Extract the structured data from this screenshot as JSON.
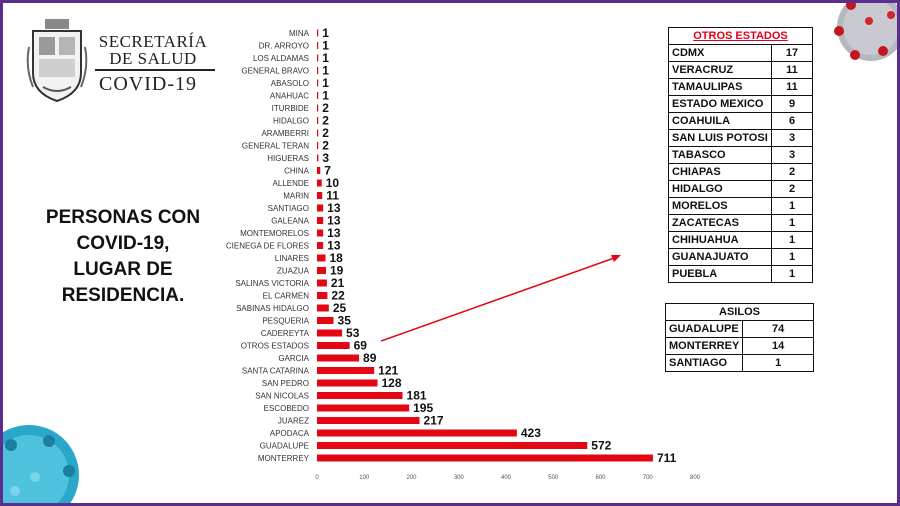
{
  "header": {
    "org_line1": "SECRETARÍA",
    "org_line2": "DE SALUD",
    "program": "COVID-19"
  },
  "caption": {
    "line1": "PERSONAS CON",
    "line2": "COVID-19,",
    "line3": "LUGAR DE",
    "line4": "RESIDENCIA."
  },
  "colors": {
    "bar": "#e30613",
    "frame": "#5b2d8e",
    "otros_title": "#e0001b"
  },
  "chart_data": {
    "type": "bar",
    "orientation": "horizontal",
    "title": "",
    "xlabel": "",
    "ylabel": "",
    "xlim": [
      0,
      800
    ],
    "x_ticks": [
      "0",
      "100",
      "200",
      "300",
      "400",
      "500",
      "600",
      "700",
      "800"
    ],
    "grid": false,
    "categories": [
      "MINA",
      "DR. ARROYO",
      "LOS ALDAMAS",
      "GENERAL BRAVO",
      "ABASOLO",
      "ANAHUAC",
      "ITURBIDE",
      "HIDALGO",
      "ARAMBERRI",
      "GENERAL TERAN",
      "HIGUERAS",
      "CHINA",
      "ALLENDE",
      "MARIN",
      "SANTIAGO",
      "GALEANA",
      "MONTEMORELOS",
      "CIENEGA DE FLORES",
      "LINARES",
      "ZUAZUA",
      "SALINAS VICTORIA",
      "EL CARMEN",
      "SABINAS HIDALGO",
      "PESQUERIA",
      "CADEREYTA",
      "OTROS ESTADOS",
      "GARCIA",
      "SANTA CATARINA",
      "SAN PEDRO",
      "SAN NICOLAS",
      "ESCOBEDO",
      "JUAREZ",
      "APODACA",
      "GUADALUPE",
      "MONTERREY"
    ],
    "values": [
      1,
      1,
      1,
      1,
      1,
      1,
      2,
      2,
      2,
      2,
      3,
      7,
      10,
      11,
      13,
      13,
      13,
      13,
      18,
      19,
      21,
      22,
      25,
      35,
      53,
      69,
      89,
      121,
      128,
      181,
      195,
      217,
      423,
      572,
      711
    ]
  },
  "otros_estados": {
    "title": "OTROS ESTADOS",
    "rows": [
      {
        "name": "CDMX",
        "value": "17"
      },
      {
        "name": "VERACRUZ",
        "value": "11"
      },
      {
        "name": "TAMAULIPAS",
        "value": "11"
      },
      {
        "name": "ESTADO MEXICO",
        "value": "9"
      },
      {
        "name": "COAHUILA",
        "value": "6"
      },
      {
        "name": "SAN LUIS POTOSI",
        "value": "3"
      },
      {
        "name": "TABASCO",
        "value": "3"
      },
      {
        "name": "CHIAPAS",
        "value": "2"
      },
      {
        "name": "HIDALGO",
        "value": "2"
      },
      {
        "name": "MORELOS",
        "value": "1"
      },
      {
        "name": "ZACATECAS",
        "value": "1"
      },
      {
        "name": "CHIHUAHUA",
        "value": "1"
      },
      {
        "name": "GUANAJUATO",
        "value": "1"
      },
      {
        "name": "PUEBLA",
        "value": "1"
      }
    ]
  },
  "asilos": {
    "title": "ASILOS",
    "rows": [
      {
        "name": "GUADALUPE",
        "value": "74"
      },
      {
        "name": "MONTERREY",
        "value": "14"
      },
      {
        "name": "SANTIAGO",
        "value": "1"
      }
    ]
  }
}
